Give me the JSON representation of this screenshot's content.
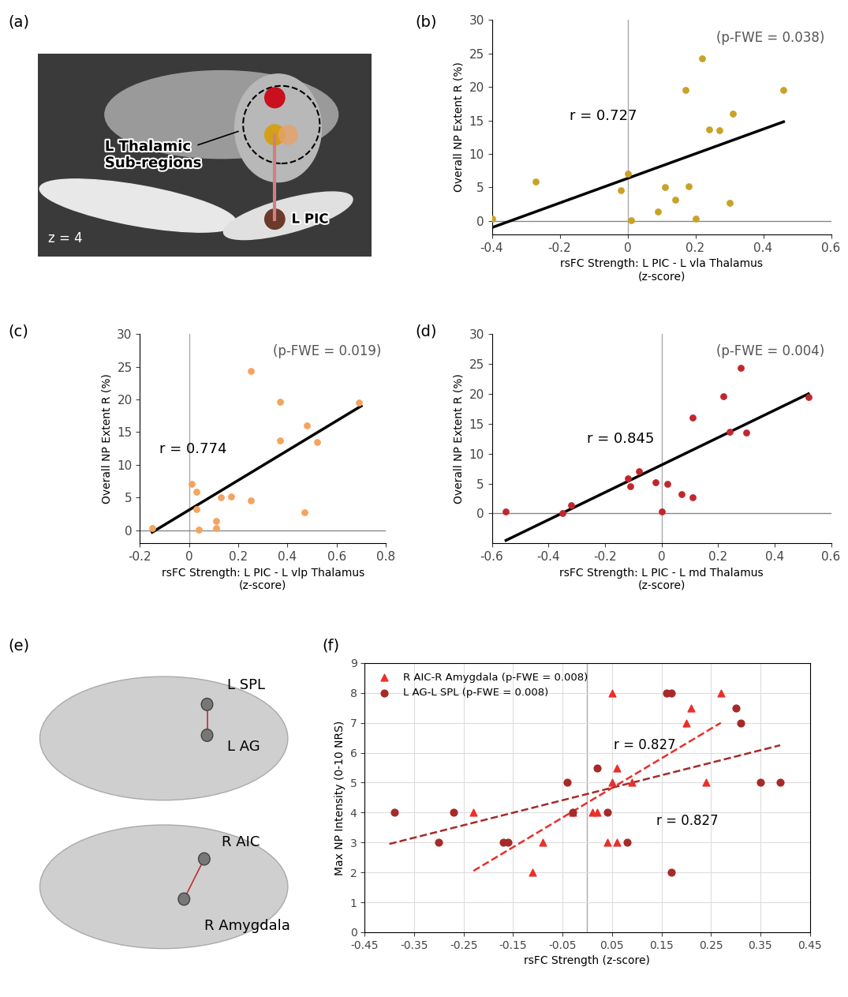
{
  "chart_data": [
    {
      "type": "scatter",
      "panel_label": "(b)",
      "x_label": "rsFC Strength: L PIC - L vla Thalamus\n(z-score)",
      "y_label": "Overall NP Extent R (%)",
      "annotations": [
        "(p-FWE = 0.038)",
        "r = 0.727"
      ],
      "color": "#c9a227",
      "marker": "circle",
      "x": [
        -0.4,
        -0.27,
        -0.02,
        0.0,
        0.01,
        0.09,
        0.11,
        0.14,
        0.17,
        0.18,
        0.2,
        0.22,
        0.24,
        0.27,
        0.3,
        0.31,
        0.46
      ],
      "y": [
        0.3,
        5.9,
        4.6,
        7.1,
        0.1,
        1.4,
        5.0,
        3.2,
        19.6,
        5.2,
        0.3,
        24.3,
        13.7,
        13.5,
        2.7,
        16.0,
        19.5
      ],
      "fit_line": {
        "x": [
          -0.4,
          0.46
        ],
        "y": [
          -1.0,
          14.8
        ]
      },
      "vline": 0,
      "hline": 0,
      "xlim": [
        -0.4,
        0.6
      ],
      "xticks": [
        -0.4,
        -0.2,
        0,
        0.2,
        0.4,
        0.6
      ],
      "ylim": [
        -2,
        30
      ],
      "yticks": [
        0,
        5,
        10,
        15,
        20,
        25,
        30
      ]
    },
    {
      "type": "scatter",
      "panel_label": "(c)",
      "x_label": "rsFC Strength: L PIC - L vlp Thalamus\n(z-score)",
      "y_label": "Overall NP Extent R (%)",
      "annotations": [
        "(p-FWE = 0.019)",
        "r = 0.774"
      ],
      "color": "#f4a460",
      "marker": "circle",
      "x": [
        -0.15,
        0.01,
        0.03,
        0.03,
        0.04,
        0.11,
        0.11,
        0.13,
        0.17,
        0.25,
        0.25,
        0.37,
        0.37,
        0.47,
        0.48,
        0.52,
        0.69
      ],
      "y": [
        0.3,
        7.1,
        5.9,
        3.2,
        0.1,
        1.4,
        0.3,
        5.0,
        5.2,
        24.3,
        4.6,
        19.6,
        13.7,
        2.7,
        16.0,
        13.5,
        19.5
      ],
      "fit_line": {
        "x": [
          -0.15,
          0.7
        ],
        "y": [
          -0.3,
          19.0
        ]
      },
      "vline": 0,
      "hline": 0,
      "xlim": [
        -0.2,
        0.8
      ],
      "xticks": [
        -0.2,
        0,
        0.2,
        0.4,
        0.6,
        0.8
      ],
      "ylim": [
        -2,
        30
      ],
      "yticks": [
        0,
        5,
        10,
        15,
        20,
        25,
        30
      ]
    },
    {
      "type": "scatter",
      "panel_label": "(d)",
      "x_label": "rsFC Strength: L PIC - L md Thalamus\n(z-score)",
      "y_label": "Overall NP Extent R (%)",
      "annotations": [
        "(p-FWE = 0.004)",
        "r = 0.845"
      ],
      "color": "#c0272d",
      "marker": "circle",
      "x": [
        -0.55,
        -0.35,
        -0.32,
        -0.12,
        -0.11,
        -0.08,
        -0.02,
        0.0,
        0.02,
        0.07,
        0.11,
        0.11,
        0.22,
        0.24,
        0.28,
        0.3,
        0.52
      ],
      "y": [
        0.3,
        0.1,
        1.4,
        5.9,
        4.6,
        7.1,
        5.2,
        0.3,
        5.0,
        3.2,
        2.7,
        16.0,
        19.6,
        13.7,
        24.3,
        13.5,
        19.5
      ],
      "fit_line": {
        "x": [
          -0.55,
          0.52
        ],
        "y": [
          -4.5,
          20.0
        ]
      },
      "vline": 0,
      "hline": 0,
      "xlim": [
        -0.6,
        0.6
      ],
      "xticks": [
        -0.6,
        -0.4,
        -0.2,
        0,
        0.2,
        0.4,
        0.6
      ],
      "ylim": [
        -5,
        30
      ],
      "yticks": [
        0,
        5,
        10,
        15,
        20,
        25,
        30
      ]
    },
    {
      "type": "scatter",
      "panel_label": "(f)",
      "x_label": "rsFC Strength (z-score)",
      "y_label": "Max NP Intensity (0-10 NRS)",
      "legend": "upper left",
      "grid": true,
      "vline": 0,
      "series": [
        {
          "name": "R AIC-R Amygdala (p-FWE = 0.008)",
          "color": "#e8302a",
          "marker": "triangle",
          "line_style": "dashed",
          "annotation": "r = 0.827",
          "x": [
            -0.23,
            -0.11,
            -0.09,
            -0.03,
            0.01,
            0.02,
            0.04,
            0.06,
            0.05,
            0.06,
            0.05,
            0.09,
            0.2,
            0.21,
            0.27,
            0.24
          ],
          "y": [
            4,
            2,
            3,
            4,
            4,
            4,
            3,
            3,
            5,
            5.5,
            8,
            5,
            7,
            7.5,
            8,
            5
          ],
          "fit_line": {
            "x": [
              -0.23,
              0.27
            ],
            "y": [
              2.05,
              7.0
            ]
          }
        },
        {
          "name": "L AG-L SPL (p-FWE = 0.008)",
          "color": "#a52a2a",
          "marker": "circle",
          "line_style": "dashed",
          "annotation": "r = 0.827",
          "x": [
            -0.39,
            -0.3,
            -0.27,
            -0.17,
            -0.16,
            -0.04,
            -0.03,
            0.02,
            0.04,
            0.08,
            0.16,
            0.17,
            0.17,
            0.3,
            0.31,
            0.35,
            0.39
          ],
          "y": [
            4,
            3,
            4,
            3,
            3,
            5,
            4,
            5.5,
            4,
            3,
            8,
            8,
            2,
            7.5,
            7,
            5,
            5
          ],
          "fit_line": {
            "x": [
              -0.4,
              0.39
            ],
            "y": [
              2.95,
              6.25
            ]
          }
        }
      ],
      "xlim": [
        -0.45,
        0.45
      ],
      "xticks": [
        -0.45,
        -0.35,
        -0.25,
        -0.15,
        -0.05,
        0.05,
        0.15,
        0.25,
        0.35,
        0.45
      ],
      "ylim": [
        0,
        9
      ],
      "yticks": [
        0,
        1,
        2,
        3,
        4,
        5,
        6,
        7,
        8,
        9
      ]
    }
  ],
  "diagrams": [
    {
      "panel_label": "(a)",
      "labels": [
        "L Thalamic\nSub-regions",
        "L PIC",
        "z = 4"
      ]
    },
    {
      "panel_label": "(e)",
      "labels": [
        "L SPL",
        "L AG",
        "R AIC",
        "R Amygdala"
      ]
    }
  ]
}
